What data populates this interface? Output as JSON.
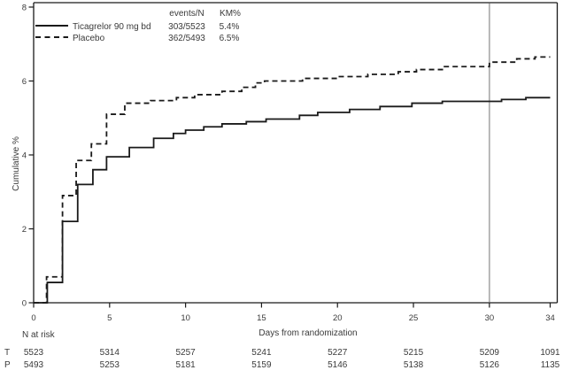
{
  "chart_data": {
    "type": "line",
    "subtype": "kaplan-meier-step",
    "xlabel": "Days from randomization",
    "ylabel": "Cumulative %",
    "xlim": [
      0,
      34
    ],
    "ylim": [
      0,
      8
    ],
    "xticks": [
      0,
      5,
      10,
      15,
      20,
      25,
      30,
      34
    ],
    "yticks": [
      0,
      2,
      4,
      6,
      8
    ],
    "grid": false,
    "reference_line_x": 30,
    "legend": {
      "position": "top-left",
      "col_events": "events/N",
      "col_km": "KM%"
    },
    "series": [
      {
        "name": "Ticagrelor 90 mg bd",
        "style": "solid",
        "events_n": "303/5523",
        "km_pct": "5.4%",
        "points": [
          [
            0,
            0
          ],
          [
            0.9,
            0.55
          ],
          [
            1.9,
            2.2
          ],
          [
            2.9,
            3.2
          ],
          [
            3.9,
            3.6
          ],
          [
            4.8,
            3.95
          ],
          [
            6.3,
            4.2
          ],
          [
            7.9,
            4.45
          ],
          [
            9.2,
            4.58
          ],
          [
            10,
            4.67
          ],
          [
            11.2,
            4.76
          ],
          [
            12.4,
            4.84
          ],
          [
            14,
            4.9
          ],
          [
            15.3,
            4.97
          ],
          [
            17.5,
            5.07
          ],
          [
            18.7,
            5.15
          ],
          [
            20.8,
            5.23
          ],
          [
            22.8,
            5.31
          ],
          [
            24.9,
            5.4
          ],
          [
            26.9,
            5.45
          ],
          [
            30.8,
            5.5
          ],
          [
            32.4,
            5.55
          ],
          [
            34,
            5.55
          ]
        ]
      },
      {
        "name": "Placebo",
        "style": "dashed",
        "events_n": "362/5493",
        "km_pct": "6.5%",
        "points": [
          [
            0,
            0
          ],
          [
            0.85,
            0.7
          ],
          [
            1.9,
            2.9
          ],
          [
            2.8,
            3.85
          ],
          [
            3.8,
            4.3
          ],
          [
            4.8,
            5.1
          ],
          [
            6,
            5.4
          ],
          [
            7.7,
            5.47
          ],
          [
            9.4,
            5.55
          ],
          [
            10.6,
            5.63
          ],
          [
            12.4,
            5.72
          ],
          [
            13.7,
            5.83
          ],
          [
            14.6,
            5.95
          ],
          [
            15.2,
            6.0
          ],
          [
            17.7,
            6.07
          ],
          [
            20,
            6.12
          ],
          [
            22,
            6.18
          ],
          [
            24,
            6.25
          ],
          [
            25.2,
            6.31
          ],
          [
            26.9,
            6.39
          ],
          [
            30,
            6.51
          ],
          [
            31.8,
            6.6
          ],
          [
            33,
            6.65
          ],
          [
            34,
            6.65
          ]
        ]
      }
    ],
    "n_at_risk": {
      "header": "N at risk",
      "rows": [
        {
          "label": "T",
          "values": [
            "5523",
            "5314",
            "5257",
            "5241",
            "5227",
            "5215",
            "5209",
            "1091"
          ]
        },
        {
          "label": "P",
          "values": [
            "5493",
            "5253",
            "5181",
            "5159",
            "5146",
            "5138",
            "5126",
            "1135"
          ]
        }
      ]
    }
  },
  "colors": {
    "line": "#1a1a1a",
    "reference_line": "#b0b0b0",
    "text": "#3a3a3a",
    "background": "#ffffff"
  }
}
